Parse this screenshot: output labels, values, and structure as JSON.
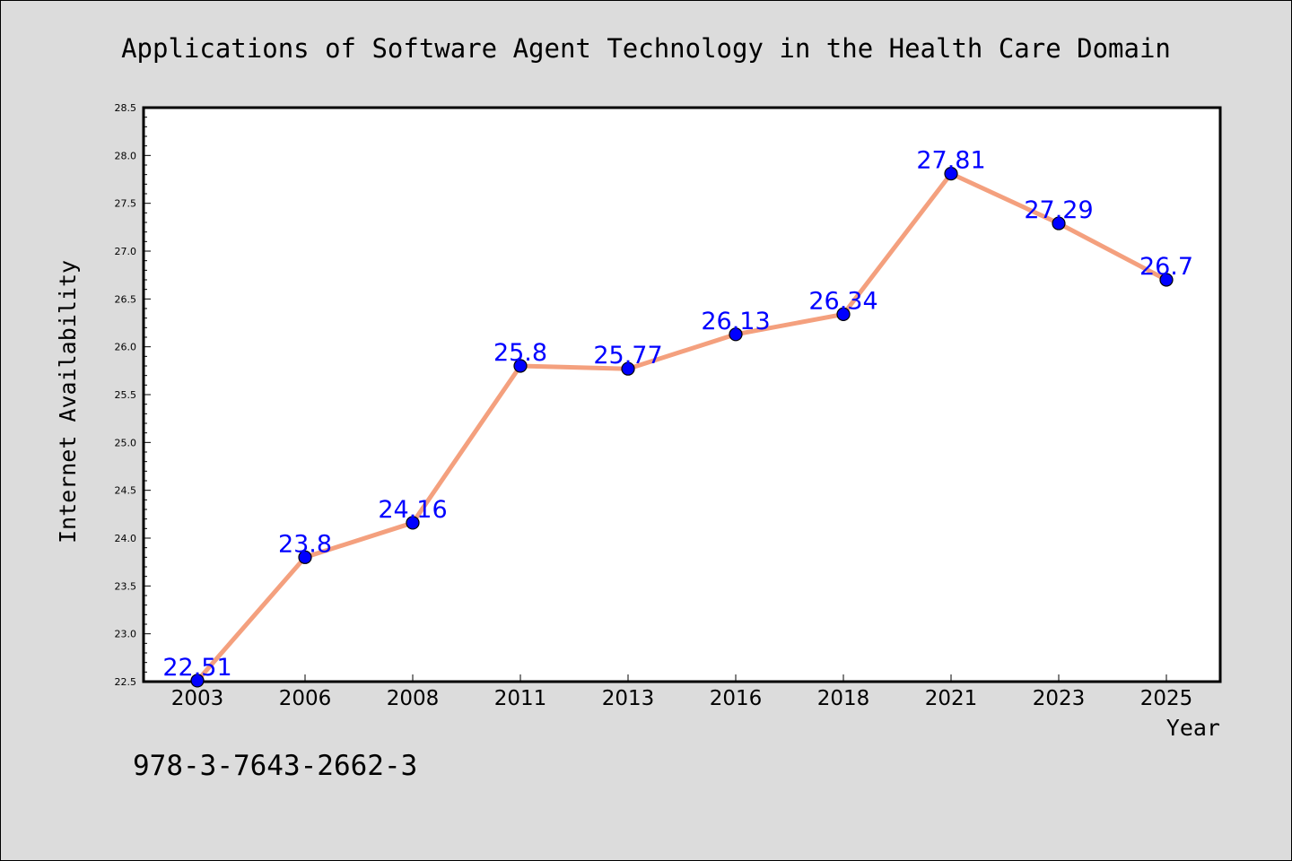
{
  "chart_data": {
    "type": "line",
    "title": "Applications of Software Agent Technology in the Health Care Domain",
    "xlabel": "Year",
    "ylabel": "Internet Availability",
    "categories": [
      "2003",
      "2006",
      "2008",
      "2011",
      "2013",
      "2016",
      "2018",
      "2021",
      "2023",
      "2025"
    ],
    "values": [
      22.51,
      23.8,
      24.16,
      25.8,
      25.77,
      26.13,
      26.34,
      27.81,
      27.29,
      26.7
    ],
    "data_labels": [
      "22.51",
      "23.8",
      "24.16",
      "25.8",
      "25.77",
      "26.13",
      "26.34",
      "27.81",
      "27.29",
      "26.7"
    ],
    "ylim": [
      22.5,
      28.5
    ],
    "yticks": [
      "22.5",
      "23.0",
      "23.5",
      "24.0",
      "24.5",
      "25.0",
      "25.5",
      "26.0",
      "26.5",
      "27.0",
      "27.5",
      "28.0",
      "28.5"
    ],
    "grid": false,
    "legend": "none",
    "colors": {
      "line": "#f4a07e",
      "marker": "#0000ff",
      "label": "#0000ff",
      "background": "#dcdcdc",
      "plot_background": "#ffffff"
    }
  },
  "footer_text": "978-3-7643-2662-3"
}
